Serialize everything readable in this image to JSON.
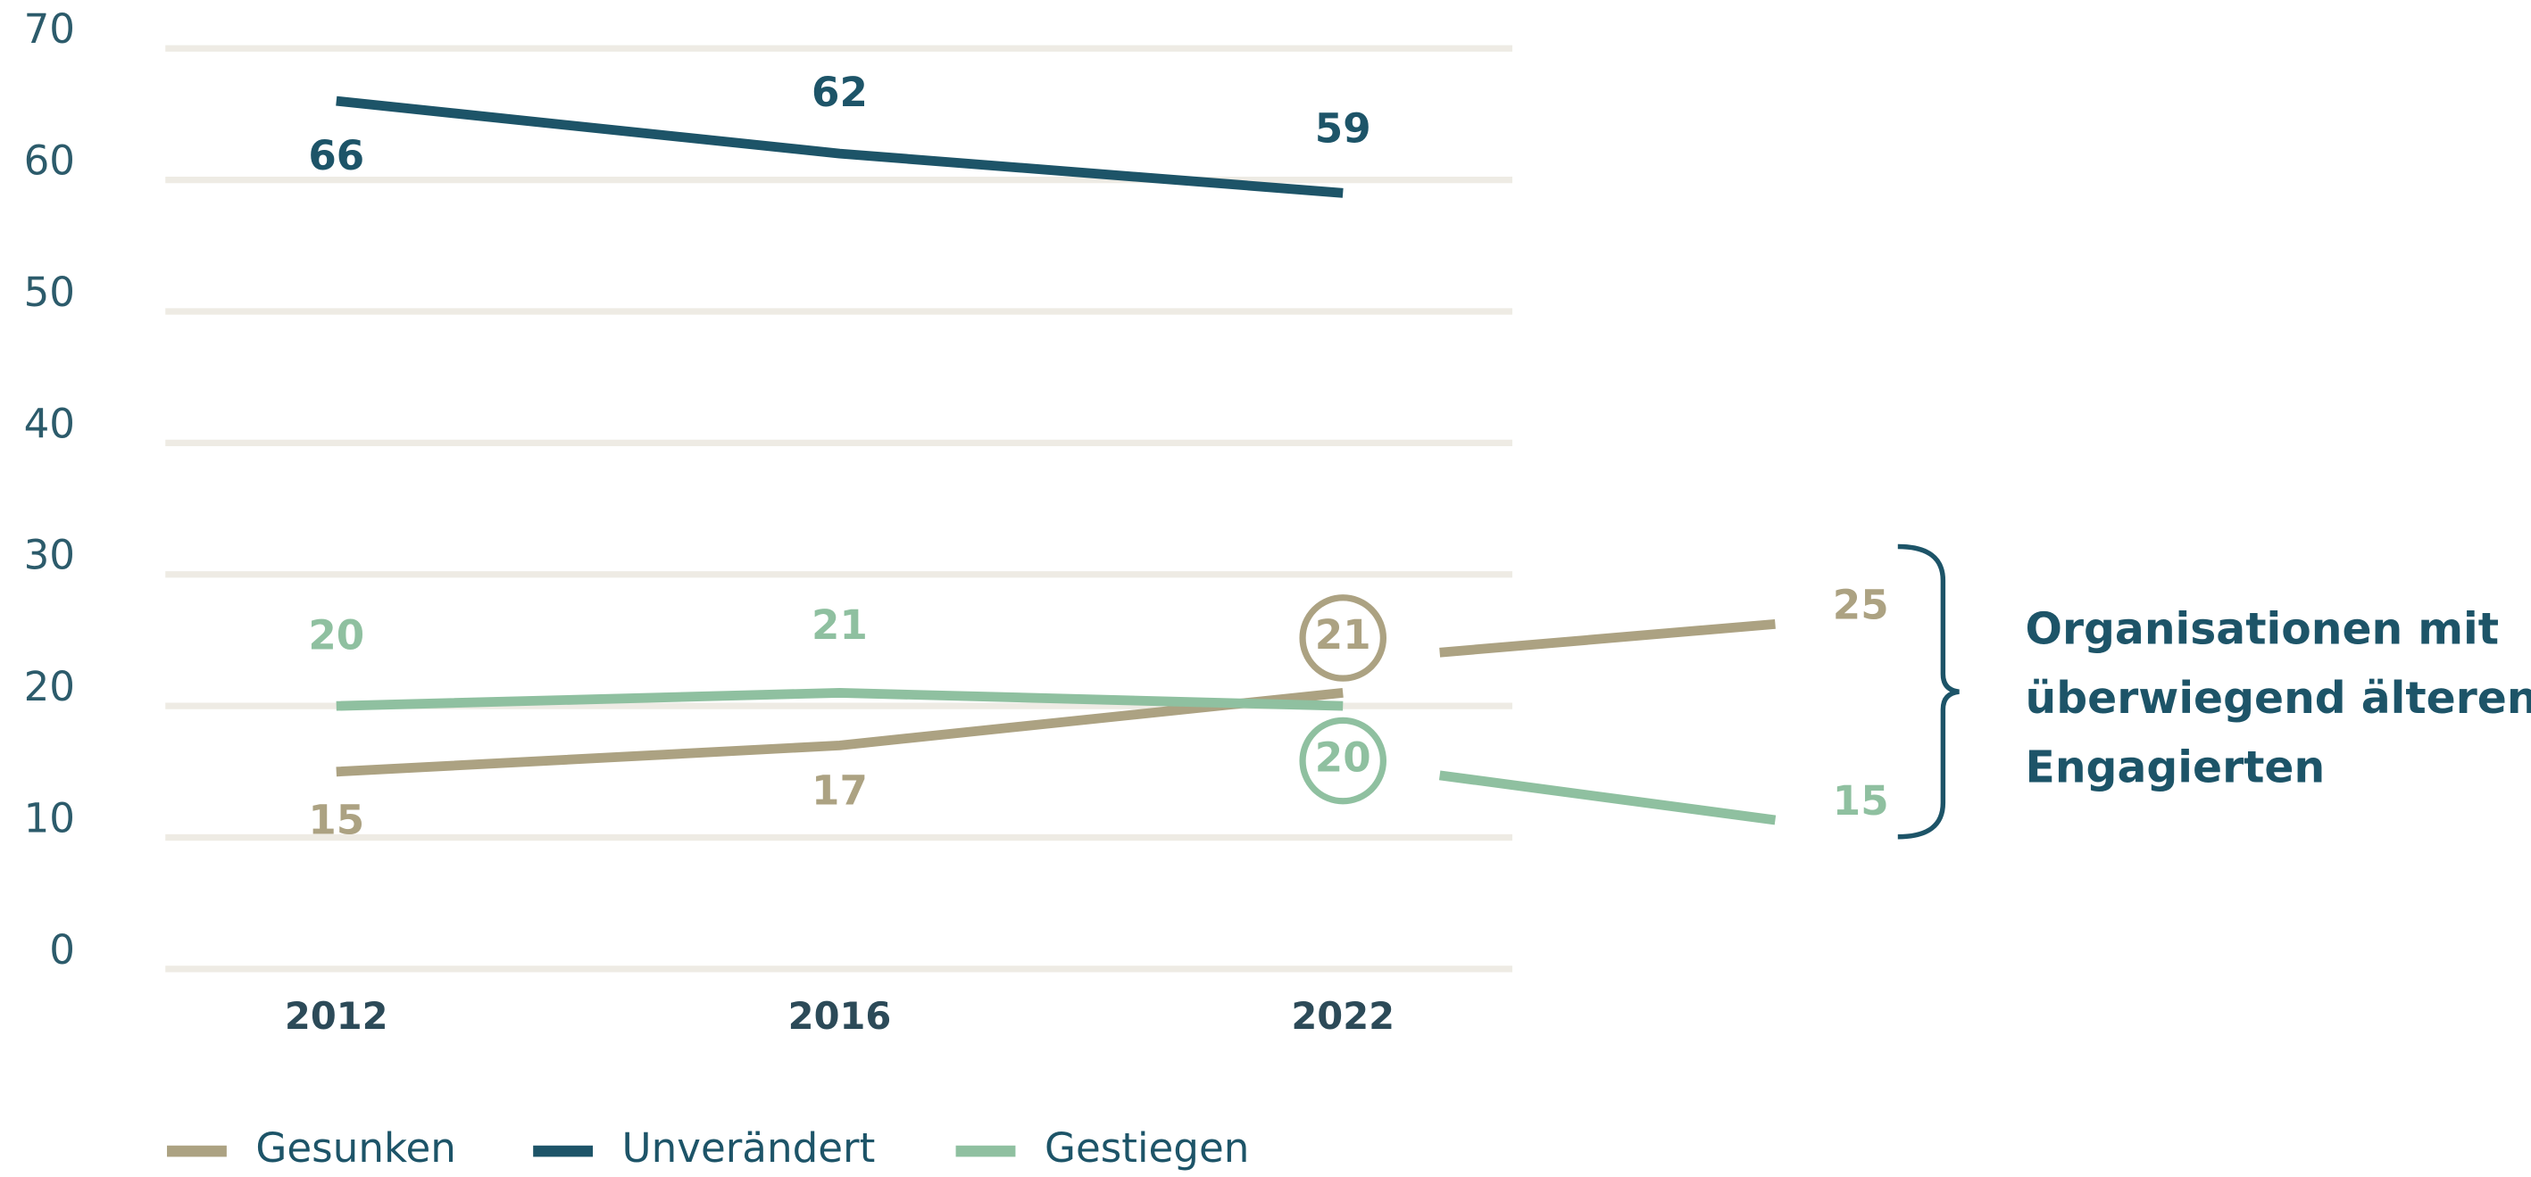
{
  "chart_data": {
    "type": "line",
    "categories": [
      "2012",
      "2016",
      "2022"
    ],
    "series": [
      {
        "name": "Gesunken",
        "color": "#aca282",
        "values": [
          15,
          17,
          21
        ],
        "extension": 25
      },
      {
        "name": "Unverändert",
        "color": "#1d5468",
        "values": [
          66,
          62,
          59
        ]
      },
      {
        "name": "Gestiegen",
        "color": "#8fc0a0",
        "values": [
          20,
          21,
          20
        ],
        "extension": 15
      }
    ],
    "ylim": [
      0,
      70
    ],
    "yticks": [
      0,
      10,
      20,
      30,
      40,
      50,
      60,
      70
    ],
    "grid": true,
    "legend": "bottom",
    "annotation": [
      "Organisationen mit",
      "überwiegend älteren",
      "Engagierten"
    ]
  }
}
